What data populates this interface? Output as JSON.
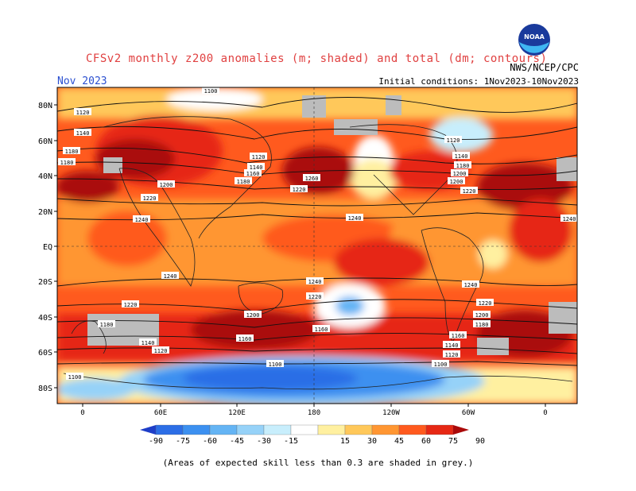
{
  "header": {
    "title": "CFSv2 monthly z200 anomalies (m; shaded) and total (dm; contours)",
    "month": "Nov 2023",
    "agency": "NWS/NCEP/CPC",
    "initial_conditions": "Initial conditions: 1Nov2023-10Nov2023",
    "logo_text": "NOAA"
  },
  "map": {
    "lat_labels": [
      "80N",
      "60N",
      "40N",
      "20N",
      "EQ",
      "20S",
      "40S",
      "60S",
      "80S"
    ],
    "lon_labels": [
      "0",
      "60E",
      "120E",
      "180",
      "120W",
      "60W",
      "0"
    ],
    "contour_labels": [
      "1100",
      "1120",
      "1140",
      "1160",
      "1180",
      "1200",
      "1220",
      "1240",
      "1260"
    ]
  },
  "colorbar": {
    "ticks": [
      "-90",
      "-75",
      "-60",
      "-45",
      "-30",
      "-15",
      "15",
      "30",
      "45",
      "60",
      "75",
      "90"
    ],
    "colors": [
      "#1e3ec8",
      "#2c6ee6",
      "#3c90f0",
      "#64b4f4",
      "#96d2f8",
      "#c8eefc",
      "#ffffff",
      "#fff0a0",
      "#ffc85a",
      "#ff9632",
      "#ff5a1e",
      "#e62814",
      "#aa0a0a"
    ]
  },
  "footnote": "(Areas of expected skill less than 0.3 are shaded in grey.)"
}
